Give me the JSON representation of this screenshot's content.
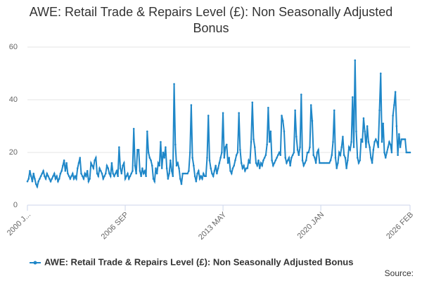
{
  "chart_data": {
    "type": "line",
    "title": "AWE: Retail Trade & Repairs Level (£): Non Seasonally Adjusted Bonus",
    "source_label": "Source:",
    "categories": [
      "2000 J...",
      null,
      null,
      null,
      null,
      null,
      null,
      null,
      null,
      null,
      null,
      null,
      null,
      null,
      null,
      null,
      null,
      null,
      null,
      null,
      null,
      null,
      null,
      null,
      null,
      null,
      null,
      null,
      null,
      null,
      null,
      null,
      null,
      null,
      null,
      null,
      null,
      null,
      null,
      null,
      null,
      null,
      null,
      null,
      null,
      null,
      null,
      null,
      null,
      null,
      null,
      null,
      null,
      null,
      null,
      null,
      null,
      null,
      null,
      null,
      null,
      null,
      null,
      null,
      null,
      null,
      null,
      null,
      null,
      null,
      null,
      null,
      null,
      null,
      null,
      null,
      null,
      null,
      null,
      null,
      "2006 SEP",
      null,
      null,
      null,
      null,
      null,
      null,
      null,
      null,
      null,
      null,
      null,
      null,
      null,
      null,
      null,
      null,
      null,
      null,
      null,
      null,
      null,
      null,
      null,
      null,
      null,
      null,
      null,
      null,
      null,
      null,
      null,
      null,
      null,
      null,
      null,
      null,
      null,
      null,
      null,
      null,
      null,
      null,
      null,
      null,
      null,
      null,
      null,
      null,
      null,
      null,
      null,
      null,
      null,
      null,
      null,
      null,
      null,
      null,
      null,
      null,
      null,
      null,
      null,
      null,
      null,
      null,
      null,
      null,
      null,
      null,
      null,
      null,
      null,
      null,
      null,
      null,
      null,
      null,
      null,
      "2013 MAY",
      null,
      null,
      null,
      null,
      null,
      null,
      null,
      null,
      null,
      null,
      null,
      null,
      null,
      null,
      null,
      null,
      null,
      null,
      null,
      null,
      null,
      null,
      null,
      null,
      null,
      null,
      null,
      null,
      null,
      null,
      null,
      null,
      null,
      null,
      null,
      null,
      null,
      null,
      null,
      null,
      null,
      null,
      null,
      null,
      null,
      null,
      null,
      null,
      null,
      null,
      null,
      null,
      null,
      null,
      null,
      null,
      null,
      null,
      null,
      null,
      null,
      null,
      null,
      null,
      null,
      null,
      null,
      null,
      null,
      null,
      null,
      null,
      null,
      null,
      null,
      null,
      null,
      null,
      null,
      "2020 JAN",
      null,
      null,
      null,
      null,
      null,
      null,
      null,
      null,
      null,
      null,
      null,
      null,
      null,
      null,
      null,
      null,
      null,
      null,
      null,
      null,
      null,
      null,
      null,
      null,
      null,
      null,
      null,
      null,
      null,
      null,
      null,
      null,
      null,
      null,
      null,
      null,
      null,
      null,
      null,
      null,
      null,
      null,
      null,
      null,
      null,
      null,
      null,
      null,
      null,
      null,
      null,
      null,
      null,
      null,
      null,
      null,
      null,
      null,
      null,
      null,
      null,
      null,
      null,
      null,
      null,
      null,
      null,
      null,
      null,
      null,
      null,
      null,
      "2026 FEB"
    ],
    "series": [
      {
        "name": "AWE: Retail Trade & Repairs Level (£): Non Seasonally Adjusted Bonus",
        "color": "#1f87c8",
        "values": [
          9,
          10,
          13,
          11,
          9,
          12,
          10,
          8,
          7,
          9,
          10,
          11,
          12,
          13,
          11,
          10,
          12,
          11,
          10,
          9,
          10,
          11,
          12,
          10,
          11,
          9,
          10,
          12,
          13,
          15,
          17,
          13,
          16,
          12,
          11,
          10,
          11,
          12,
          10,
          11,
          10,
          14,
          16,
          18,
          12,
          11,
          10,
          12,
          11,
          13,
          9,
          10,
          16,
          15,
          14,
          17,
          18,
          12,
          11,
          14,
          13,
          12,
          10,
          11,
          12,
          15,
          14,
          12,
          11,
          16,
          12,
          11,
          12,
          13,
          11,
          22,
          14,
          12,
          15,
          16,
          10,
          11,
          12,
          10,
          11,
          12,
          13,
          29,
          15,
          12,
          21,
          21,
          13,
          11,
          14,
          12,
          13,
          11,
          28,
          20,
          18,
          17,
          15,
          10,
          9,
          14,
          12,
          16,
          15,
          24,
          14,
          20,
          18,
          22,
          14,
          10,
          12,
          17,
          13,
          11,
          46,
          23,
          15,
          16,
          14,
          10,
          8,
          12,
          12,
          12,
          12,
          12,
          13,
          20,
          38,
          18,
          15,
          11,
          9,
          12,
          13,
          10,
          11,
          10,
          12,
          11,
          11,
          18,
          34,
          17,
          14,
          12,
          11,
          13,
          15,
          12,
          14,
          16,
          18,
          20,
          35,
          18,
          22,
          23,
          16,
          18,
          13,
          12,
          14,
          15,
          17,
          19,
          20,
          35,
          21,
          16,
          14,
          15,
          13,
          14,
          14,
          17,
          16,
          24,
          39,
          25,
          22,
          16,
          15,
          17,
          14,
          16,
          15,
          17,
          18,
          19,
          23,
          37,
          24,
          28,
          17,
          15,
          16,
          17,
          18,
          19,
          20,
          19,
          34,
          32,
          28,
          18,
          16,
          17,
          18,
          15,
          18,
          19,
          20,
          36,
          26,
          21,
          19,
          22,
          42,
          17,
          15,
          16,
          17,
          20,
          20,
          22,
          38,
          32,
          19,
          18,
          16,
          20,
          21,
          16,
          16,
          16,
          16,
          16,
          16,
          16,
          16,
          16,
          17,
          19,
          24,
          36,
          18,
          14,
          16,
          20,
          19,
          22,
          26,
          19,
          18,
          14,
          17,
          22,
          21,
          24,
          41,
          22,
          55,
          28,
          18,
          16,
          17,
          25,
          24,
          33,
          28,
          22,
          30,
          24,
          22,
          18,
          16,
          21,
          24,
          25,
          24,
          22,
          36,
          50,
          24,
          31,
          20,
          18,
          20,
          22,
          24,
          23,
          20,
          34,
          38,
          43,
          30,
          19,
          27,
          22,
          25,
          25,
          25,
          25,
          20,
          20,
          20,
          20
        ]
      }
    ],
    "ylim": [
      0,
      60
    ],
    "yticks": [
      0,
      20,
      40,
      60
    ],
    "grid": true,
    "legend": "bottom"
  }
}
